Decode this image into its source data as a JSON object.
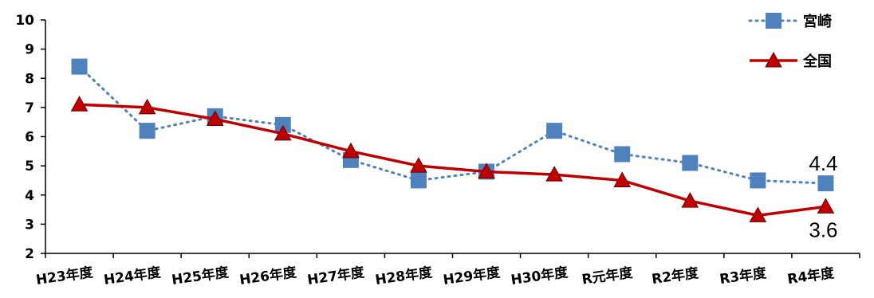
{
  "chart_data": {
    "type": "line",
    "categories": [
      "H23年度",
      "H24年度",
      "H25年度",
      "H26年度",
      "H27年度",
      "H28年度",
      "H29年度",
      "H30年度",
      "R元年度",
      "R2年度",
      "R3年度",
      "R4年度"
    ],
    "ylim": [
      2,
      10
    ],
    "yticks": [
      "2",
      "3",
      "4",
      "5",
      "6",
      "7",
      "8",
      "9",
      "10"
    ],
    "grid": false,
    "legend_position": "top-right",
    "series": [
      {
        "name": "宮崎",
        "color": "#4f81bd",
        "style": "dotted",
        "marker": "square",
        "values": [
          8.4,
          6.2,
          6.7,
          6.4,
          5.2,
          4.5,
          4.8,
          6.2,
          5.4,
          5.1,
          4.5,
          4.4
        ]
      },
      {
        "name": "全国",
        "color": "#c00000",
        "style": "solid",
        "marker": "triangle",
        "values": [
          7.1,
          7.0,
          6.6,
          6.1,
          5.5,
          5.0,
          4.8,
          4.7,
          4.5,
          3.8,
          3.3,
          3.6
        ]
      }
    ],
    "annotations": [
      {
        "text": "4.4",
        "series": 0,
        "index": 11,
        "placement": "above"
      },
      {
        "text": "3.6",
        "series": 1,
        "index": 11,
        "placement": "below"
      }
    ]
  }
}
